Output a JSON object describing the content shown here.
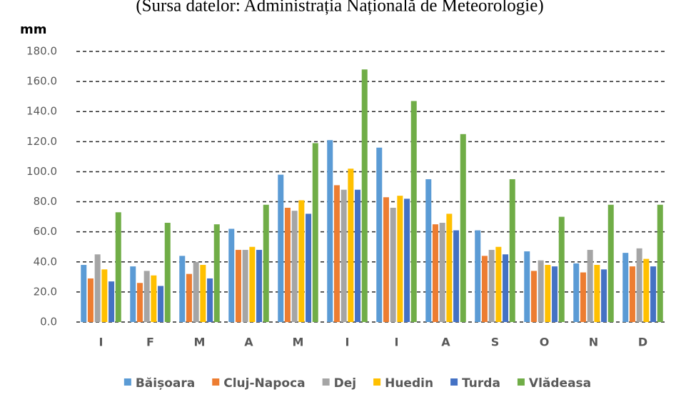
{
  "chart_data": {
    "type": "bar",
    "title": "(Sursa datelor: Administrația Națională de Meteorologie)",
    "y_label": "mm",
    "categories": [
      "I",
      "F",
      "M",
      "A",
      "M",
      "I",
      "I",
      "A",
      "S",
      "O",
      "N",
      "D"
    ],
    "series": [
      {
        "name": "Băișoara",
        "color": "#5b9bd5",
        "values": [
          38,
          37,
          44,
          62,
          98,
          121,
          116,
          95,
          61,
          47,
          39,
          46
        ]
      },
      {
        "name": "Cluj-Napoca",
        "color": "#ed7d31",
        "values": [
          29,
          26,
          32,
          48,
          76,
          91,
          83,
          65,
          44,
          34,
          33,
          37
        ]
      },
      {
        "name": "Dej",
        "color": "#a5a5a5",
        "values": [
          45,
          34,
          40,
          48,
          74,
          88,
          76,
          66,
          48,
          41,
          48,
          49
        ]
      },
      {
        "name": "Huedin",
        "color": "#ffc000",
        "values": [
          35,
          31,
          38,
          50,
          81,
          102,
          84,
          72,
          50,
          38,
          38,
          42
        ]
      },
      {
        "name": "Turda",
        "color": "#4472c4",
        "values": [
          27,
          24,
          29,
          48,
          72,
          88,
          82,
          61,
          45,
          37,
          35,
          37
        ]
      },
      {
        "name": "Vlădeasa",
        "color": "#70ad47",
        "values": [
          73,
          66,
          65,
          78,
          119,
          168,
          147,
          125,
          95,
          70,
          78,
          78
        ]
      }
    ],
    "ylim": [
      0,
      180
    ],
    "yticks": [
      {
        "value": 0,
        "label": "0.0"
      },
      {
        "value": 20,
        "label": "20.0"
      },
      {
        "value": 40,
        "label": "40.0"
      },
      {
        "value": 60,
        "label": "60.0"
      },
      {
        "value": 80,
        "label": "80.0"
      },
      {
        "value": 100,
        "label": "100.0"
      },
      {
        "value": 120,
        "label": "120.0"
      },
      {
        "value": 140,
        "label": "140.0"
      },
      {
        "value": 160,
        "label": "160.0"
      },
      {
        "value": 180,
        "label": "180.0"
      }
    ],
    "grid": true,
    "legend": "bottom"
  }
}
